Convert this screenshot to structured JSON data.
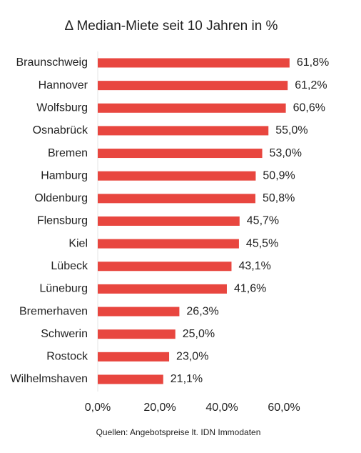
{
  "chart_data": {
    "type": "barh",
    "title": "Δ Median-Miete seit 10 Jahren in %",
    "categories": [
      "Braunschweig",
      "Hannover",
      "Wolfsburg",
      "Osnabrück",
      "Bremen",
      "Hamburg",
      "Oldenburg",
      "Flensburg",
      "Kiel",
      "Lübeck",
      "Lüneburg",
      "Bremerhaven",
      "Schwerin",
      "Rostock",
      "Wilhelmshaven"
    ],
    "values": [
      61.8,
      61.2,
      60.6,
      55.0,
      53.0,
      50.9,
      50.8,
      45.7,
      45.5,
      43.1,
      41.6,
      26.3,
      25.0,
      23.0,
      21.1
    ],
    "value_labels": [
      "61,8%",
      "61,2%",
      "60,6%",
      "55,0%",
      "53,0%",
      "50,9%",
      "50,8%",
      "45,7%",
      "45,5%",
      "43,1%",
      "41,6%",
      "26,3%",
      "25,0%",
      "23,0%",
      "21,1%"
    ],
    "color": "#e8463f",
    "xlim": [
      0,
      70
    ],
    "xticks": [
      {
        "value": 0,
        "label": "0,0%"
      },
      {
        "value": 20,
        "label": "20,0%"
      },
      {
        "value": 40,
        "label": "40,0%"
      },
      {
        "value": 60,
        "label": "60,0%"
      }
    ],
    "grid": false,
    "source": "Quellen: Angebotspreise lt. IDN Immodaten"
  }
}
